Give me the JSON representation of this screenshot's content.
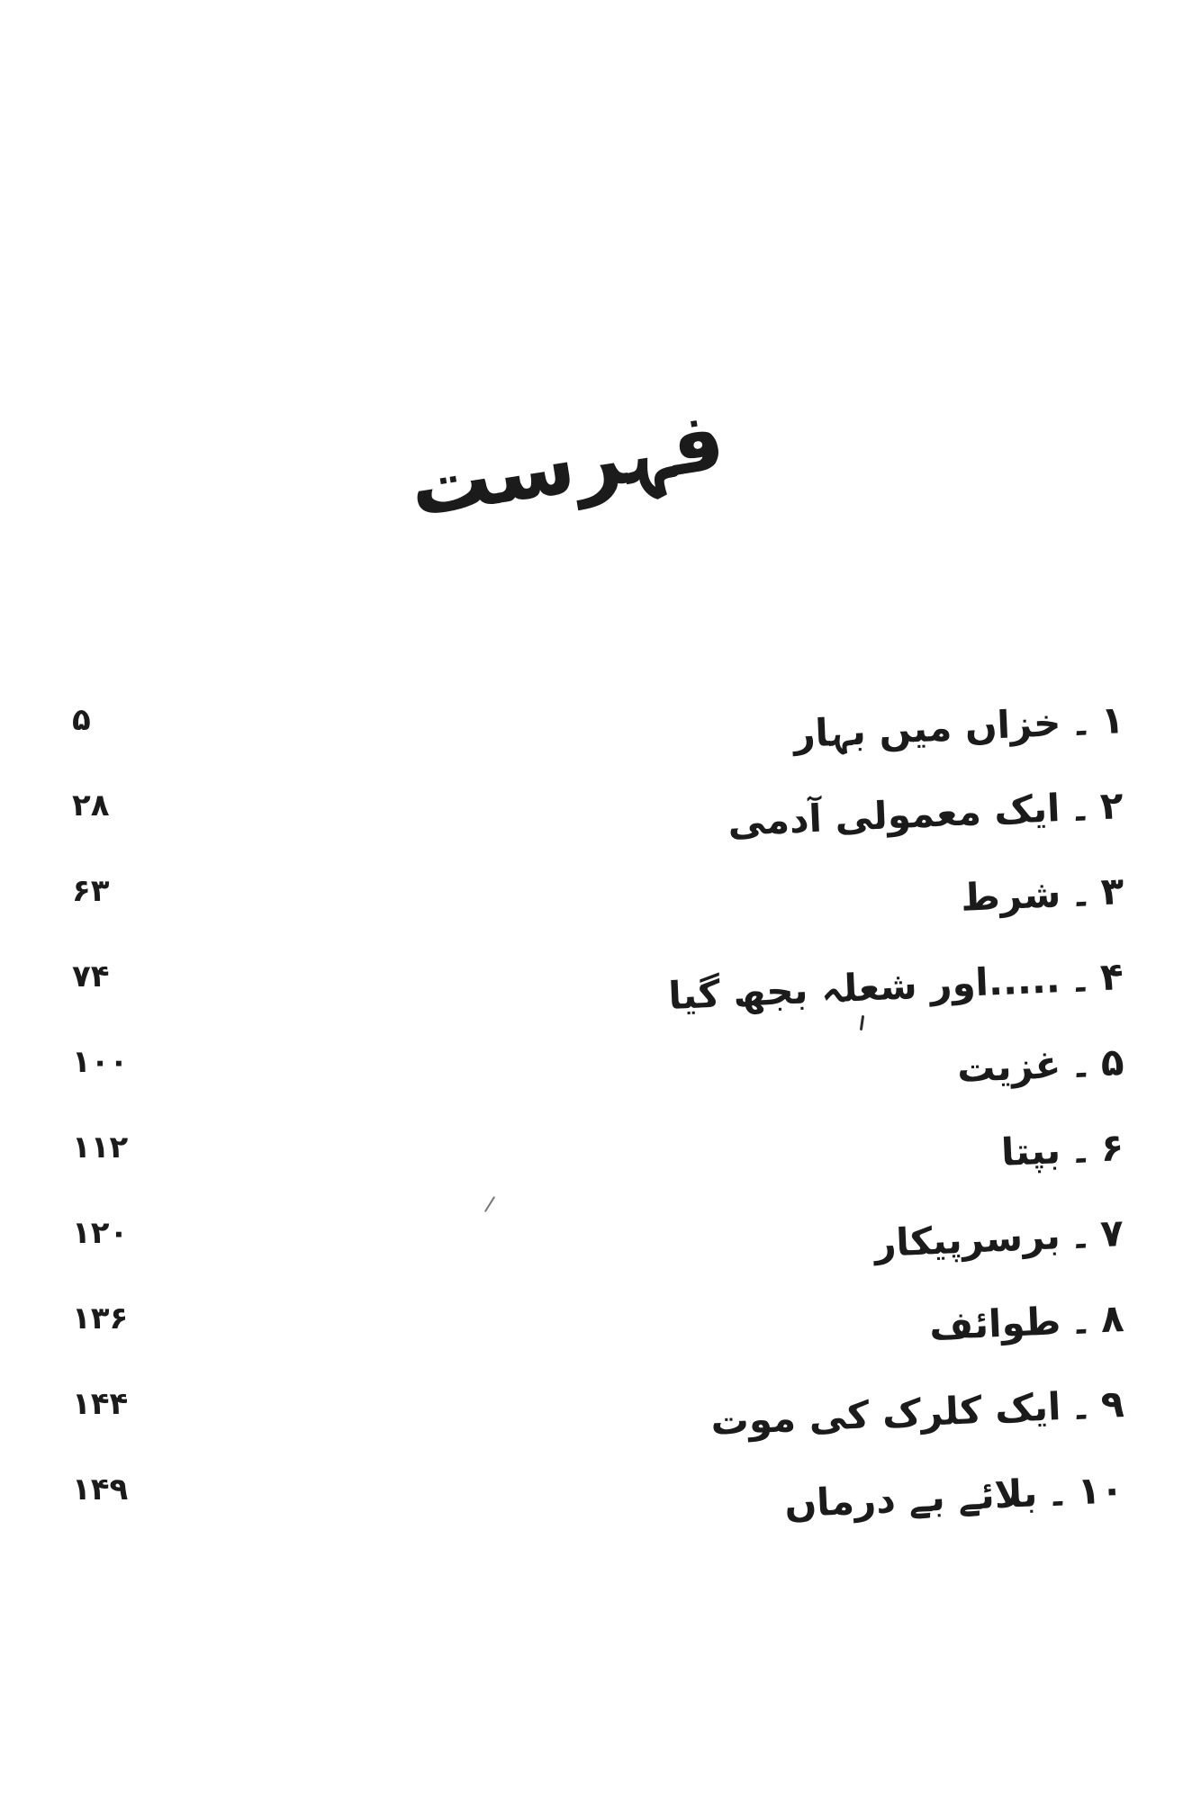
{
  "title": "فہرست",
  "toc": {
    "separator": "۔",
    "entries": [
      {
        "num": "۱",
        "title": "خزاں میں بہار",
        "page": "۵"
      },
      {
        "num": "۲",
        "title": "ایک معمولی آدمی",
        "page": "۲۸"
      },
      {
        "num": "۳",
        "title": "شرط",
        "page": "۶۳"
      },
      {
        "num": "۴",
        "title": ".....اور شعلہ بجھ گیا",
        "page": "۷۴"
      },
      {
        "num": "۵",
        "title": "غزیت",
        "page": "۱۰۰"
      },
      {
        "num": "۶",
        "title": "بپتا",
        "page": "۱۱۲"
      },
      {
        "num": "۷",
        "title": "برسرپیکار",
        "page": "۱۲۰"
      },
      {
        "num": "۸",
        "title": "طوائف",
        "page": "۱۳۶"
      },
      {
        "num": "۹",
        "title": "ایک کلرک کی موت",
        "page": "۱۴۴"
      },
      {
        "num": "۱۰",
        "title": "بلائے بے درماں",
        "page": "۱۴۹"
      }
    ]
  },
  "colors": {
    "ink": "#1b1b1b",
    "paper": "#ffffff"
  }
}
